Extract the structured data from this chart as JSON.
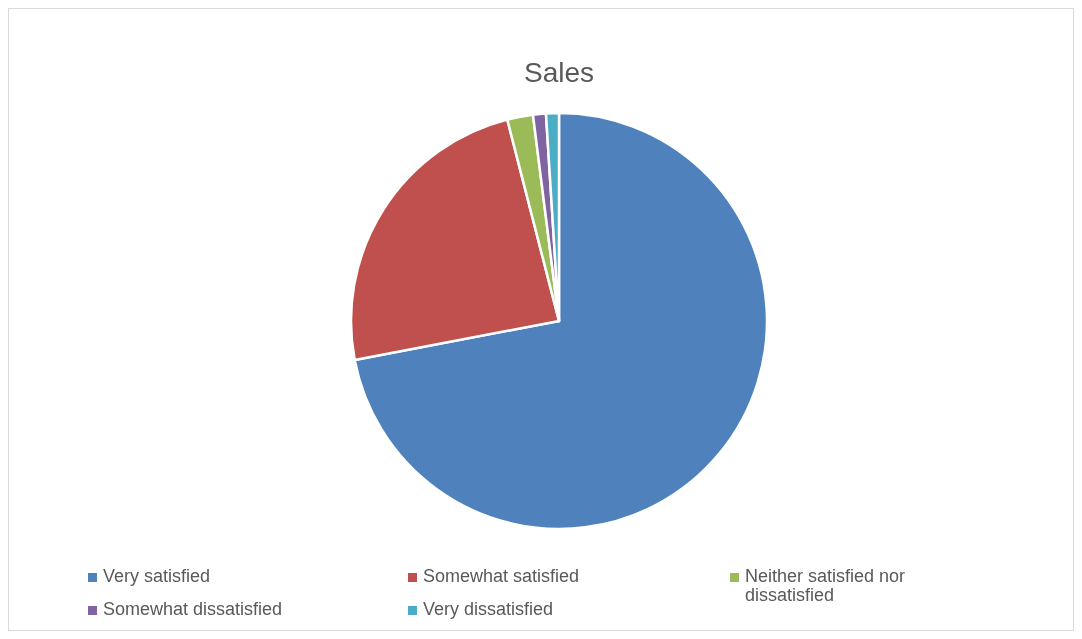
{
  "chart_data": {
    "type": "pie",
    "title": "Sales",
    "categories": [
      "Very satisfied",
      "Somewhat satisfied",
      "Neither satisfied nor dissatisfied",
      "Somewhat dissatisfied",
      "Very dissatisfied"
    ],
    "values": [
      72,
      24,
      2,
      1,
      1
    ],
    "colors": [
      "#4f81bd",
      "#c0504d",
      "#9bbb59",
      "#8064a2",
      "#4bacc6"
    ],
    "legend": "bottom"
  }
}
